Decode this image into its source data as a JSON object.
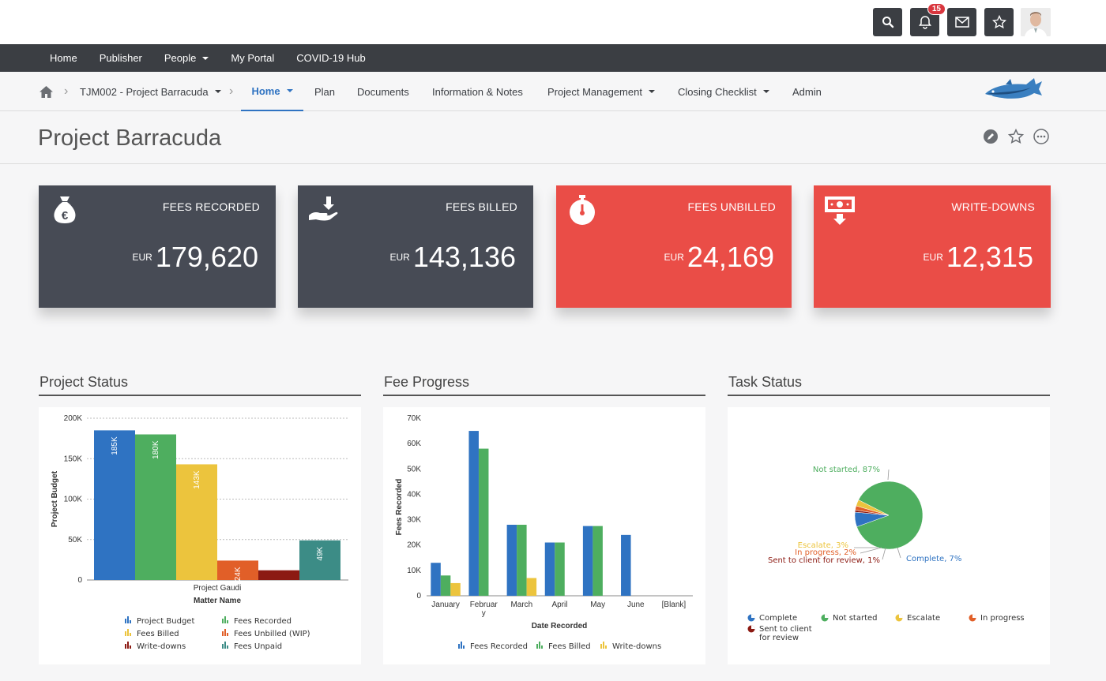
{
  "topbar": {
    "notification_count": "15",
    "icons": [
      "search-icon",
      "bell-icon",
      "mail-icon",
      "star-icon",
      "avatar"
    ]
  },
  "nav": {
    "items": [
      {
        "label": "Home"
      },
      {
        "label": "Publisher"
      },
      {
        "label": "People"
      },
      {
        "label": "My Portal"
      },
      {
        "label": "COVID-19 Hub"
      }
    ]
  },
  "subnav": {
    "project": "TJM002 - Project Barracuda",
    "tabs": {
      "home": "Home",
      "plan": "Plan",
      "documents": "Documents",
      "info": "Information & Notes",
      "pm": "Project Management",
      "closing": "Closing Checklist",
      "admin": "Admin"
    }
  },
  "page": {
    "title": "Project Barracuda"
  },
  "kpis": [
    {
      "title": "FEES RECORDED",
      "currency": "EUR",
      "value": "179,620",
      "color": "#474b55"
    },
    {
      "title": "FEES BILLED",
      "currency": "EUR",
      "value": "143,136",
      "color": "#474b55"
    },
    {
      "title": "FEES UNBILLED",
      "currency": "EUR",
      "value": "24,169",
      "color": "#ea4d47"
    },
    {
      "title": "WRITE-DOWNS",
      "currency": "EUR",
      "value": "12,315",
      "color": "#ea4d47"
    }
  ],
  "sections": {
    "status": "Project Status",
    "fee": "Fee Progress",
    "task": "Task Status"
  },
  "chart_data": [
    {
      "type": "bar",
      "title": "Project Status",
      "xlabel": "Matter Name",
      "ylabel": "Project Budget",
      "categories": [
        "Project Gaudi"
      ],
      "ylim": [
        0,
        200000
      ],
      "yticks": [
        "0",
        "50K",
        "100K",
        "150K",
        "200K"
      ],
      "series": [
        {
          "name": "Project Budget",
          "value": 185000,
          "label": "185K",
          "color": "#2f73c2"
        },
        {
          "name": "Fees Recorded",
          "value": 180000,
          "label": "180K",
          "color": "#4eae5f"
        },
        {
          "name": "Fees Billed",
          "value": 143000,
          "label": "143K",
          "color": "#ecc43d"
        },
        {
          "name": "Fees Unbilled (WIP)",
          "value": 24000,
          "label": "24K",
          "color": "#e15f28"
        },
        {
          "name": "Write-downs",
          "value": 12000,
          "label": "",
          "color": "#8c1a12"
        },
        {
          "name": "Fees Unpaid",
          "value": 49000,
          "label": "49K",
          "color": "#3c8c86"
        }
      ]
    },
    {
      "type": "bar",
      "title": "Fee Progress",
      "xlabel": "Date Recorded",
      "ylabel": "Fees Recorded",
      "categories": [
        "January",
        "Februar y",
        "March",
        "April",
        "May",
        "June",
        "[Blank]"
      ],
      "ylim": [
        0,
        70000
      ],
      "yticks": [
        "0",
        "10K",
        "20K",
        "30K",
        "40K",
        "50K",
        "60K",
        "70K"
      ],
      "series": [
        {
          "name": "Fees Recorded",
          "color": "#2f73c2",
          "values": [
            13000,
            65000,
            28000,
            21000,
            27500,
            24000,
            0
          ]
        },
        {
          "name": "Fees Billed",
          "color": "#4eae5f",
          "values": [
            8000,
            58000,
            28000,
            21000,
            27500,
            0,
            0
          ]
        },
        {
          "name": "Write-downs",
          "color": "#ecc43d",
          "values": [
            5000,
            0,
            7000,
            0,
            0,
            0,
            0
          ]
        }
      ]
    },
    {
      "type": "pie",
      "title": "Task Status",
      "slices": [
        {
          "name": "Not started",
          "value": 87,
          "label": "Not started, 87%",
          "color": "#4eae5f"
        },
        {
          "name": "Complete",
          "value": 7,
          "label": "Complete, 7%",
          "color": "#2f73c2"
        },
        {
          "name": "Sent to client for review",
          "value": 1,
          "label": "Sent to client for review, 1%",
          "color": "#8c1a12"
        },
        {
          "name": "In progress",
          "value": 2,
          "label": "In progress, 2%",
          "color": "#e15f28"
        },
        {
          "name": "Escalate",
          "value": 3,
          "label": "Escalate, 3%",
          "color": "#ecc43d"
        }
      ],
      "legend": [
        "Complete",
        "Not started",
        "Escalate",
        "In progress",
        "Sent to client for review"
      ]
    }
  ]
}
